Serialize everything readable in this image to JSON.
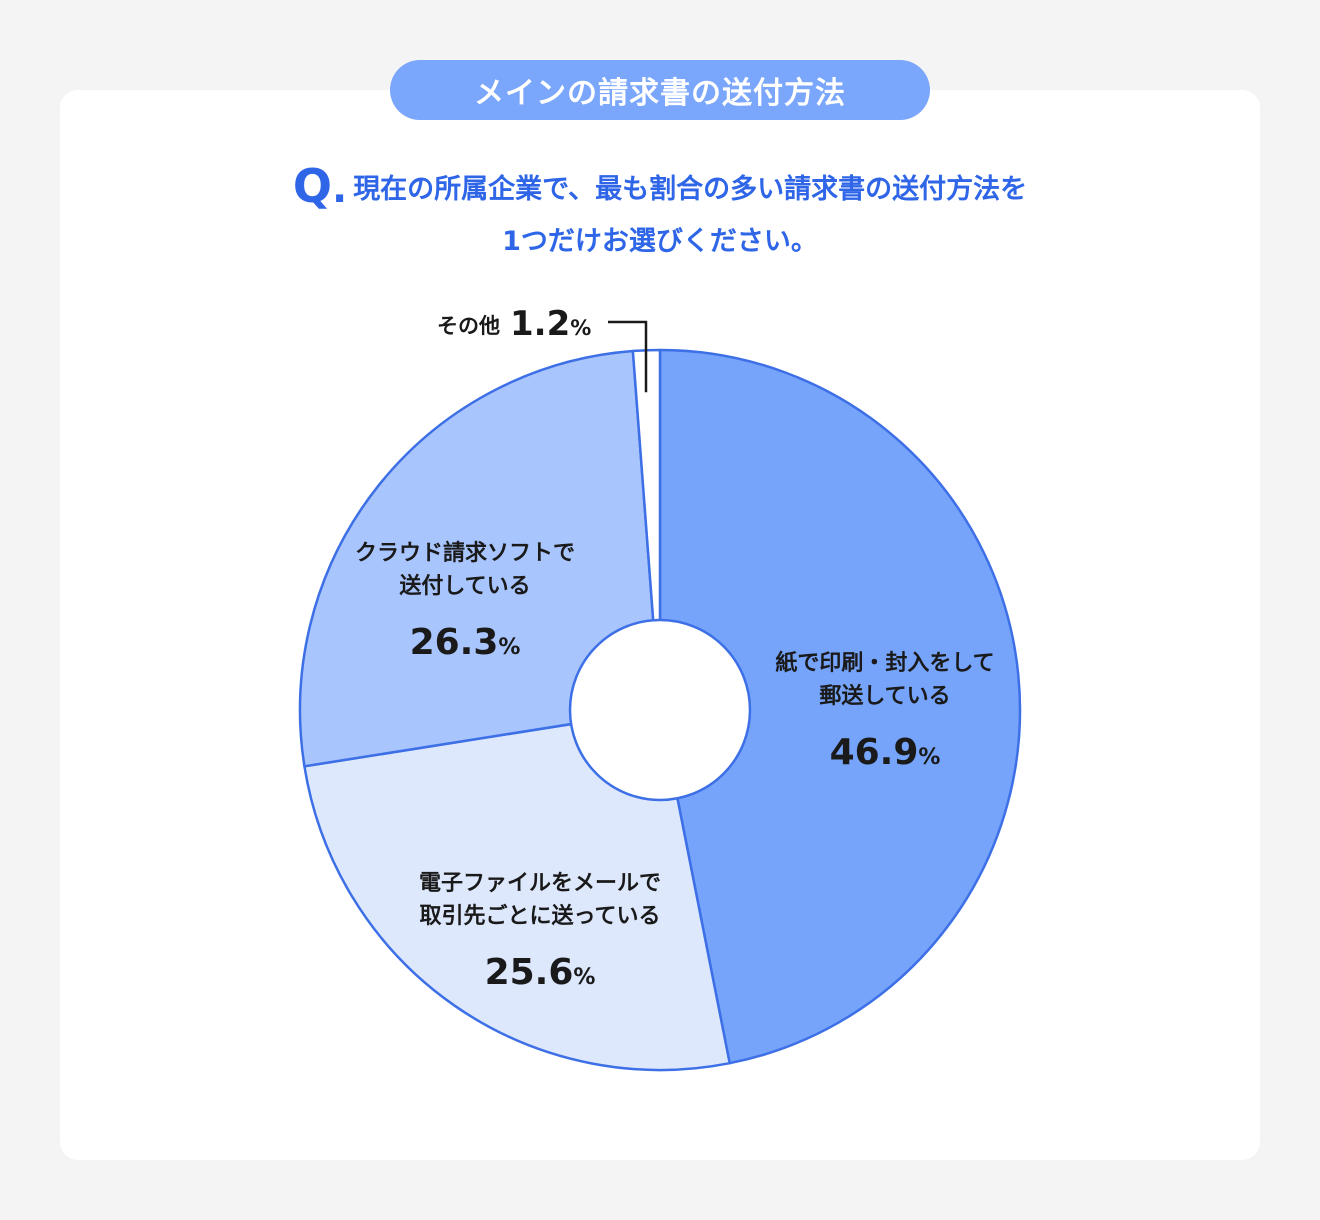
{
  "header": {
    "badge": "メインの請求書の送付方法",
    "q_letter": "Q",
    "q_dot": ".",
    "question_line1": "現在の所属企業で、最も割合の多い請求書の送付方法を",
    "question_line2": "1つだけお選びください。"
  },
  "colors": {
    "accent": "#2f66e8",
    "badge": "#7aa6fb",
    "outline": "#3d6fe6"
  },
  "chart_data": {
    "type": "pie",
    "variant": "donut",
    "unit": "%",
    "slices": [
      {
        "label_lines": [
          "紙で印刷・封入をして",
          "郵送している"
        ],
        "value": 46.9,
        "value_text": "46.9",
        "color": "#76a4fb"
      },
      {
        "label_lines": [
          "電子ファイルをメールで",
          "取引先ごとに送っている"
        ],
        "value": 25.6,
        "value_text": "25.6",
        "color": "#dde8fd"
      },
      {
        "label_lines": [
          "クラウド請求ソフトで",
          "送付している"
        ],
        "value": 26.3,
        "value_text": "26.3",
        "color": "#a9c5fd"
      },
      {
        "label_lines": [
          "その他"
        ],
        "value": 1.2,
        "value_text": "1.2",
        "color": "#ffffff"
      }
    ]
  }
}
